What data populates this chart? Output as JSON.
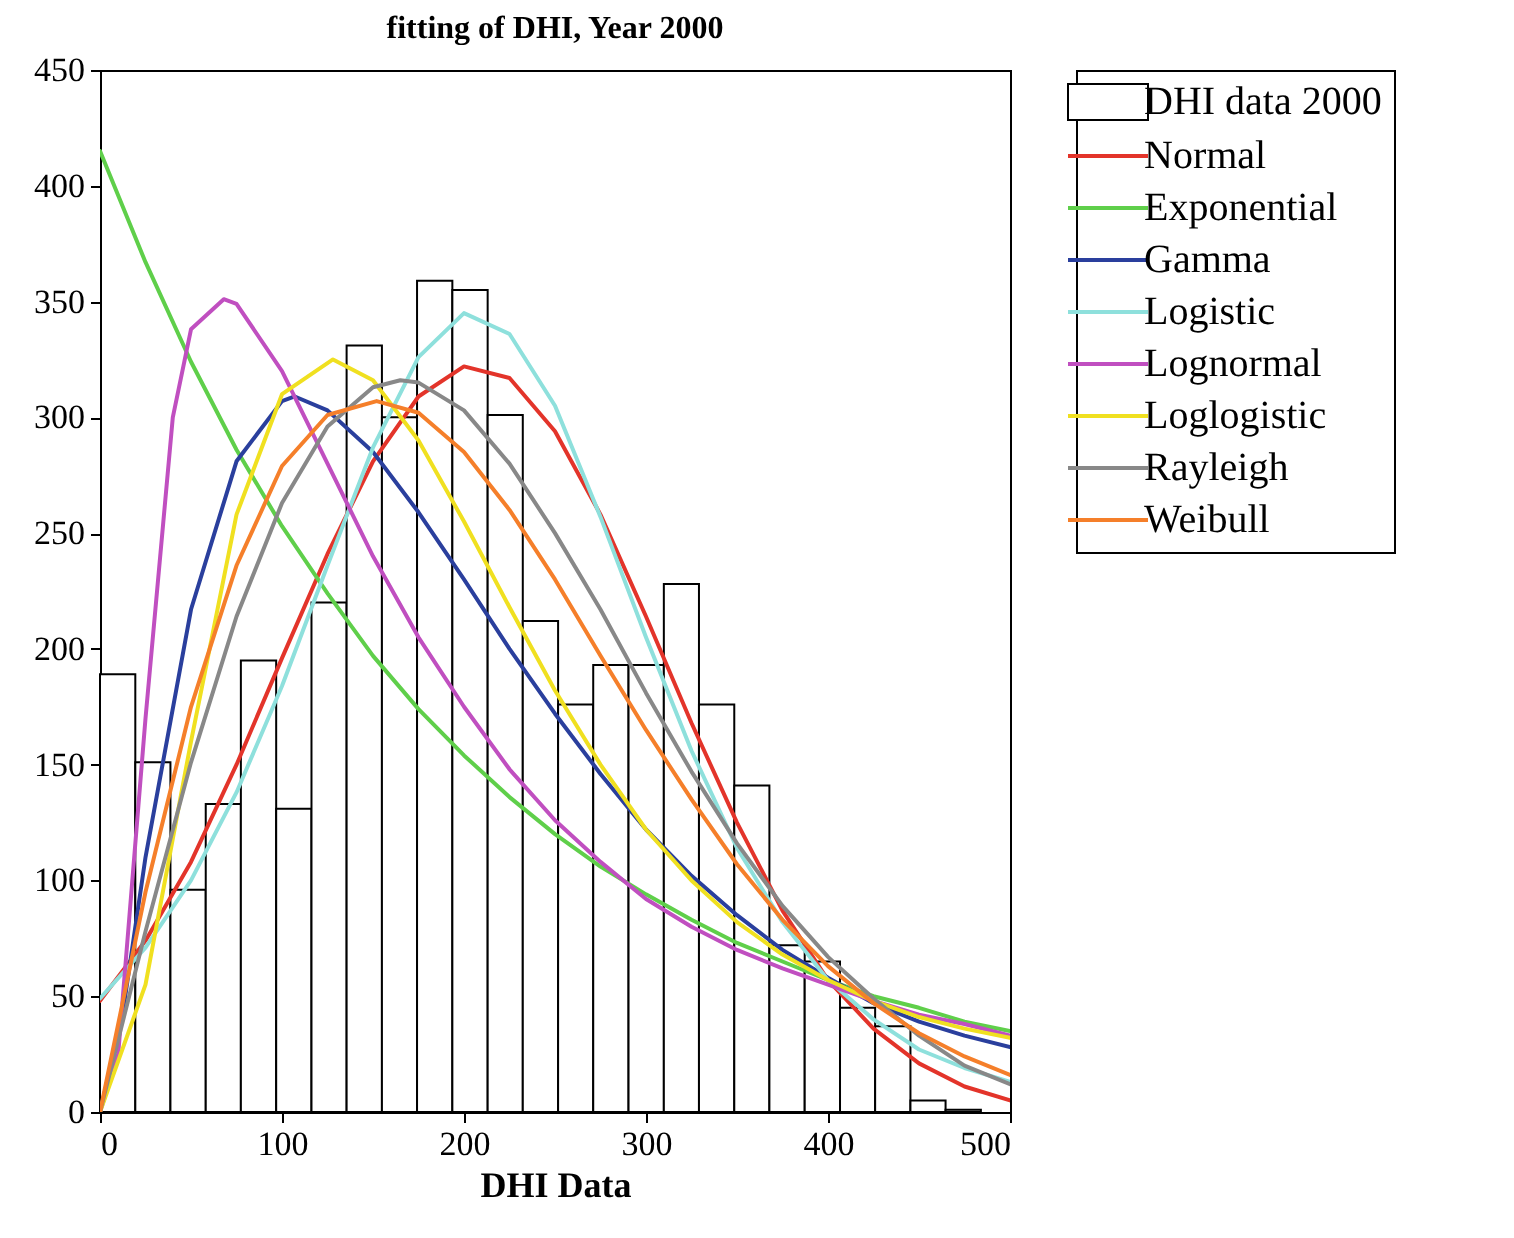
{
  "chart_data": {
    "type": "histogram",
    "title": "fitting of DHI, Year 2000",
    "xlabel": "DHI Data",
    "bins": [
      0,
      19.4,
      38.7,
      58.1,
      77.4,
      96.8,
      116.2,
      135.5,
      154.9,
      174.2,
      193.6,
      213,
      232.3,
      251.7,
      271,
      290.4,
      309.8,
      329.1,
      348.5,
      367.8,
      387.2,
      406.6,
      425.9,
      445.3,
      464.6,
      484
    ],
    "series": [
      {
        "name": "DHI data 2000",
        "color": "#ffffff",
        "values": [
          189,
          151,
          96,
          133,
          195,
          131,
          220,
          331,
          300,
          359,
          355,
          301,
          212,
          176,
          193,
          193,
          228,
          176,
          141,
          72,
          65,
          45,
          37,
          5,
          1
        ]
      },
      {
        "type": "line",
        "name": "Normal",
        "color": "#e3342a",
        "x": [
          0,
          25,
          50,
          75,
          100,
          125,
          150,
          175,
          200,
          225,
          250,
          275,
          300,
          325,
          350,
          375,
          400,
          425,
          450,
          475,
          500
        ],
        "values": [
          48,
          74,
          108,
          150,
          196,
          241,
          281,
          309,
          322,
          317,
          294,
          258,
          214,
          168,
          125,
          87,
          57,
          36,
          21,
          11,
          5
        ]
      },
      {
        "type": "line",
        "name": "Exponential",
        "color": "#5fcf4a",
        "x": [
          0,
          25,
          50,
          75,
          100,
          125,
          150,
          175,
          200,
          225,
          250,
          275,
          300,
          325,
          350,
          375,
          400,
          425,
          450,
          475,
          500
        ],
        "values": [
          415,
          367,
          324,
          286,
          253,
          224,
          197,
          174,
          154,
          136,
          120,
          106,
          94,
          83,
          73,
          65,
          57,
          50,
          45,
          39,
          35
        ]
      },
      {
        "type": "line",
        "name": "Gamma",
        "color": "#2a3f9d",
        "x": [
          0,
          12,
          25,
          50,
          75,
          100,
          107,
          125,
          150,
          175,
          200,
          225,
          250,
          275,
          300,
          325,
          350,
          375,
          400,
          425,
          450,
          475,
          500
        ],
        "values": [
          0,
          40,
          110,
          217,
          281,
          307,
          309,
          303,
          285,
          259,
          230,
          200,
          172,
          146,
          122,
          102,
          85,
          70,
          58,
          47,
          39,
          33,
          28
        ]
      },
      {
        "type": "line",
        "name": "Logistic",
        "color": "#8ee0dc",
        "x": [
          0,
          25,
          50,
          75,
          100,
          125,
          150,
          175,
          200,
          225,
          250,
          275,
          300,
          325,
          350,
          375,
          400,
          425,
          450,
          475,
          500
        ],
        "values": [
          49,
          71,
          100,
          138,
          184,
          236,
          287,
          326,
          345,
          336,
          305,
          257,
          205,
          156,
          114,
          82,
          57,
          40,
          27,
          19,
          13
        ]
      },
      {
        "type": "line",
        "name": "Lognormal",
        "color": "#c04fc0",
        "x": [
          0,
          10,
          25,
          40,
          50,
          68,
          75,
          100,
          125,
          150,
          175,
          200,
          225,
          250,
          275,
          300,
          325,
          350,
          375,
          400,
          425,
          450,
          475,
          500
        ],
        "values": [
          0,
          25,
          170,
          300,
          338,
          351,
          349,
          320,
          280,
          240,
          205,
          175,
          148,
          126,
          108,
          92,
          80,
          70,
          62,
          55,
          48,
          42,
          38,
          33
        ]
      },
      {
        "type": "line",
        "name": "Loglogistic",
        "color": "#f0e020",
        "x": [
          0,
          25,
          50,
          75,
          100,
          128,
          150,
          175,
          200,
          225,
          250,
          275,
          300,
          325,
          350,
          375,
          400,
          425,
          450,
          475,
          500
        ],
        "values": [
          0,
          55,
          160,
          258,
          310,
          325,
          316,
          290,
          255,
          218,
          182,
          150,
          122,
          100,
          82,
          68,
          57,
          48,
          41,
          36,
          32
        ]
      },
      {
        "type": "line",
        "name": "Rayleigh",
        "color": "#888888",
        "x": [
          0,
          25,
          50,
          75,
          100,
          125,
          150,
          165,
          175,
          200,
          225,
          250,
          275,
          300,
          325,
          350,
          375,
          400,
          425,
          450,
          475,
          500
        ],
        "values": [
          0,
          78,
          151,
          214,
          263,
          296,
          313,
          316,
          315,
          303,
          280,
          250,
          217,
          181,
          147,
          116,
          89,
          67,
          49,
          33,
          20,
          12
        ]
      },
      {
        "type": "line",
        "name": "Weibull",
        "color": "#f57f2a",
        "x": [
          0,
          25,
          50,
          75,
          100,
          125,
          152,
          175,
          200,
          225,
          250,
          275,
          300,
          325,
          350,
          375,
          400,
          425,
          450,
          475,
          500
        ],
        "values": [
          0,
          95,
          175,
          236,
          279,
          301,
          307,
          302,
          285,
          260,
          230,
          197,
          165,
          135,
          107,
          83,
          63,
          47,
          34,
          24,
          16
        ]
      }
    ],
    "xlim": [
      0,
      500
    ],
    "xticks": [
      0,
      100,
      200,
      300,
      400,
      500
    ],
    "ylim": [
      0,
      450
    ],
    "yticks": [
      0,
      50,
      100,
      150,
      200,
      250,
      300,
      350,
      400,
      450
    ],
    "legend": "right"
  }
}
